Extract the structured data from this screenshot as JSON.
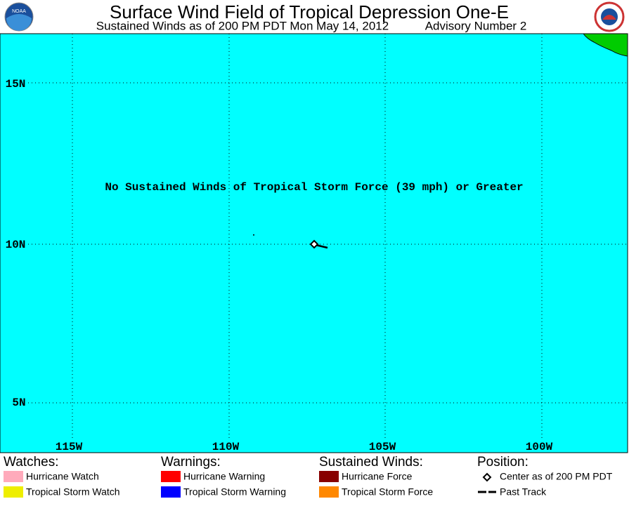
{
  "header": {
    "title": "Surface Wind Field of Tropical Depression One-E",
    "subtitle": "Sustained Winds as of 200 PM PDT Mon May 14, 2012",
    "advisory": "Advisory Number 2",
    "logo_left": "NOAA"
  },
  "map": {
    "longitudes": [
      "115W",
      "110W",
      "105W",
      "100W"
    ],
    "latitudes": [
      "15N",
      "10N",
      "5N"
    ],
    "message": "No Sustained Winds of Tropical Storm Force (39 mph) or Greater"
  },
  "legend": {
    "groups": [
      {
        "heading": "Watches:",
        "items": [
          "Hurricane Watch",
          "Tropical Storm Watch"
        ]
      },
      {
        "heading": "Warnings:",
        "items": [
          "Hurricane Warning",
          "Tropical Storm Warning"
        ]
      },
      {
        "heading": "Sustained Winds:",
        "items": [
          "Hurricane Force",
          "Tropical Storm Force"
        ]
      },
      {
        "heading": "Position:",
        "items": [
          "Center as of 200 PM PDT",
          "Past Track"
        ]
      }
    ]
  }
}
